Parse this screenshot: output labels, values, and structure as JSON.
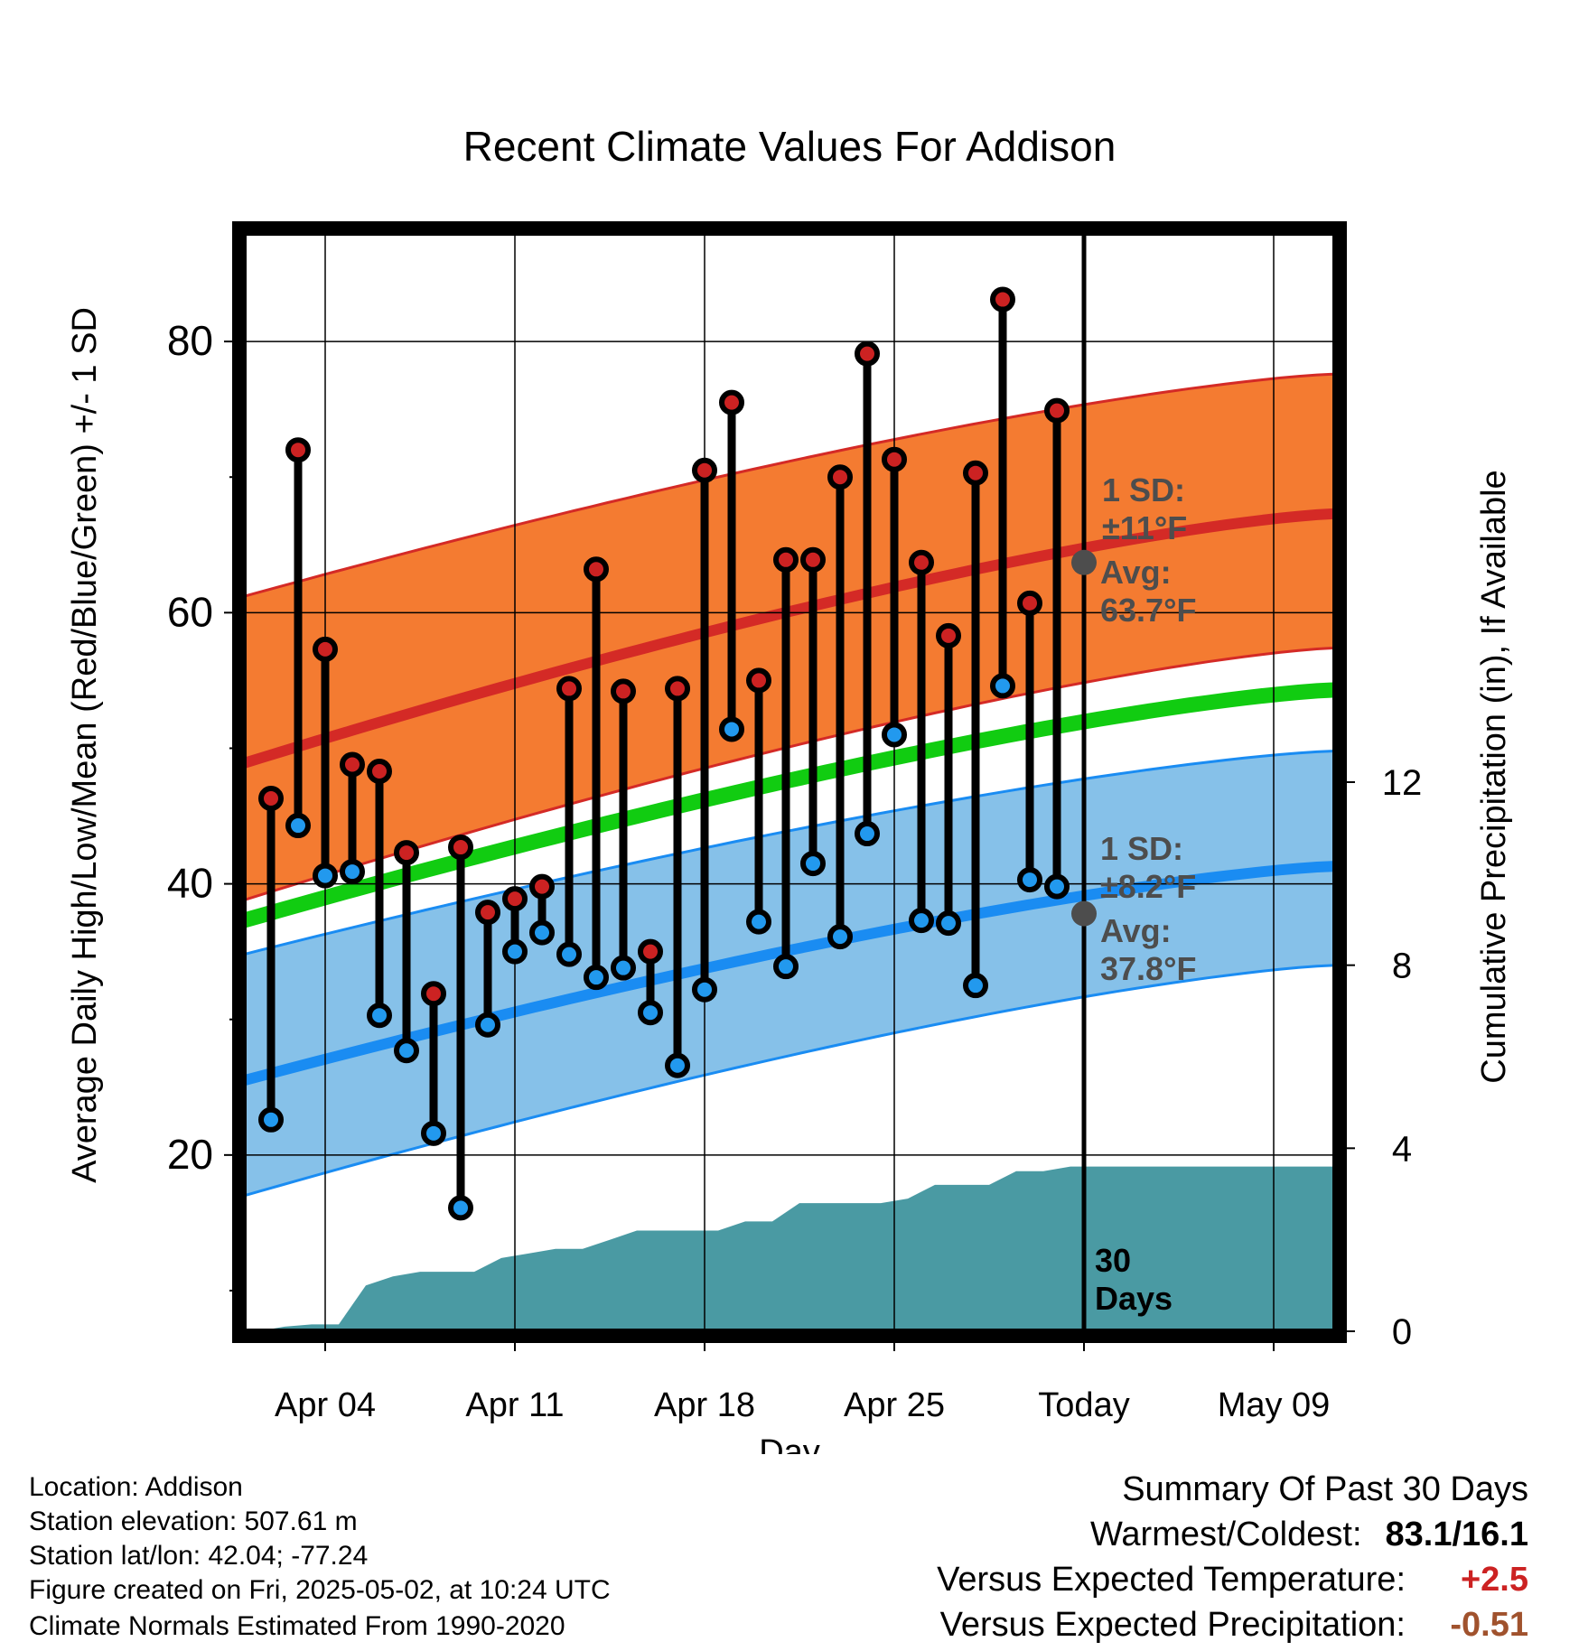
{
  "chart_data": {
    "type": "line",
    "title": "Recent Climate Values For Addison",
    "xlabel": "Day",
    "ylabel": "Average Daily High/Low/Mean (Red/Blue/Green) +/- 1 SD",
    "y2label": "Cumulative Precipitation (in), If Available",
    "x_start": "Apr 01",
    "x_end": "May 12",
    "x_tick_labels": [
      "Apr 04",
      "Apr 11",
      "Apr 18",
      "Apr 25",
      "Today",
      "May 09"
    ],
    "ylim": [
      7,
      88
    ],
    "y_ticks": [
      20,
      40,
      60,
      80
    ],
    "y2lim": [
      0,
      24
    ],
    "y2_ticks": [
      0,
      4,
      8,
      12
    ],
    "grid": true,
    "colors": {
      "high_band": "#f47b31",
      "high_line": "#d42a26",
      "low_band": "#86c1e9",
      "low_line": "#1a8cf2",
      "mean_line": "#11cc11",
      "precip": "#4a9aa3",
      "high_dot": "#cc2222",
      "low_dot": "#2299ee",
      "annot": "#4d4d4d"
    },
    "normals": {
      "high_mean": {
        "start": 48.9,
        "end": 67.3
      },
      "high_sd_band": {
        "start_upper": 61.2,
        "start_lower": 38.8,
        "end_upper": 77.6,
        "end_lower": 57.4
      },
      "low_mean": {
        "start": 25.5,
        "end": 41.3
      },
      "low_sd_band": {
        "start_upper": 34.8,
        "start_lower": 17.0,
        "end_upper": 49.8,
        "end_lower": 34.0
      },
      "daily_mean": {
        "start": 37.3,
        "end": 54.3
      }
    },
    "series": [
      {
        "name": "High",
        "values": [
          46.3,
          72.0,
          57.3,
          48.8,
          48.3,
          42.3,
          31.9,
          42.7,
          37.9,
          38.9,
          39.8,
          54.4,
          63.2,
          54.2,
          35.0,
          54.4,
          70.5,
          75.5,
          55.0,
          63.9,
          63.9,
          70.0,
          79.1,
          71.3,
          63.7,
          58.3,
          70.3,
          83.1,
          60.7,
          74.9
        ]
      },
      {
        "name": "Low",
        "values": [
          22.6,
          44.3,
          40.6,
          40.9,
          30.3,
          27.7,
          21.6,
          16.1,
          29.6,
          35.0,
          36.4,
          34.8,
          33.1,
          33.8,
          30.5,
          26.6,
          32.2,
          51.4,
          37.2,
          33.9,
          41.5,
          36.1,
          43.7,
          51.0,
          37.3,
          37.1,
          32.5,
          54.6,
          40.3,
          39.8
        ]
      }
    ],
    "precipitation": [
      0.0,
      0.1,
      0.15,
      0.15,
      1.0,
      1.2,
      1.3,
      1.3,
      1.3,
      1.6,
      1.7,
      1.8,
      1.8,
      2.0,
      2.2,
      2.2,
      2.2,
      2.2,
      2.4,
      2.4,
      2.8,
      2.8,
      2.8,
      2.8,
      2.9,
      3.2,
      3.2,
      3.2,
      3.5,
      3.5,
      3.6
    ],
    "annotations": {
      "high_sd": "1 SD:",
      "high_sd_value": "±11°F",
      "high_avg": "Avg:",
      "high_avg_value": "63.7°F",
      "low_sd": "1 SD:",
      "low_sd_value": "±8.2°F",
      "low_avg": "Avg:",
      "low_avg_value": "37.8°F",
      "today_high_avg": 63.7,
      "today_low_avg": 37.8,
      "days_line1": "30",
      "days_line2": "Days"
    }
  },
  "footer": {
    "location": "Location: Addison",
    "elevation": "Station elevation: 507.61 m",
    "latlon": "Station lat/lon: 42.04; -77.24",
    "created": "Figure created on Fri, 2025-05-02, at 10:24 UTC",
    "normals": "Climate Normals Estimated From 1990-2020"
  },
  "summary": {
    "title": "Summary Of Past 30 Days",
    "warm_cold_label": "Warmest/Coldest:",
    "warm_cold_value": "83.1/16.1",
    "temp_label": "Versus Expected Temperature:",
    "temp_value": "+2.5",
    "temp_color": "#cc2222",
    "precip_label": "Versus Expected Precipitation:",
    "precip_value": "-0.51",
    "precip_color": "#a0522d"
  }
}
